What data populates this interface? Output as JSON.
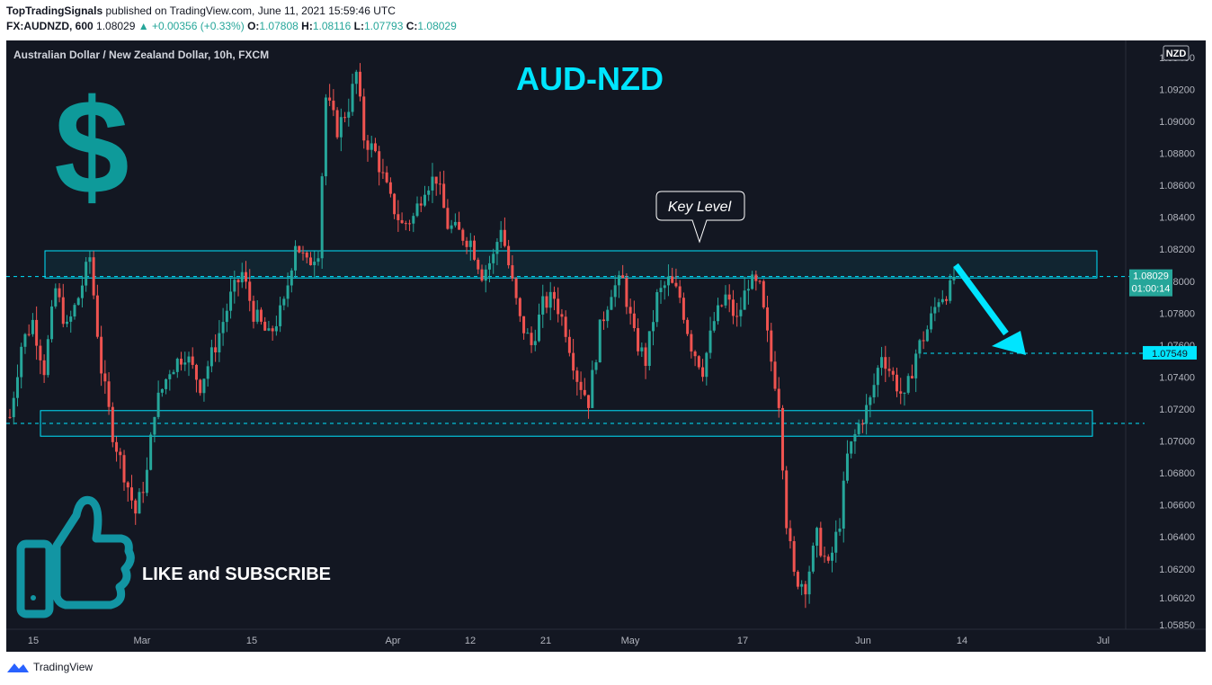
{
  "header": {
    "author": "TopTradingSignals",
    "published_text": "published on TradingView.com, June 11, 2021 15:59:46 UTC",
    "symbol": "FX:AUDNZD, 600",
    "last": "1.08029",
    "change": "▲ +0.00356 (+0.33%)",
    "o_label": "O:",
    "o": "1.07808",
    "h_label": "H:",
    "h": "1.08116",
    "l_label": "L:",
    "l": "1.07793",
    "c_label": "C:",
    "c": "1.08029"
  },
  "chart": {
    "instrument": "Australian Dollar / New Zealand Dollar, 10h, FXCM",
    "title_overlay": "AUD-NZD",
    "currency_badge": "NZD",
    "callout": "Key Level",
    "promo": "LIKE and SUBSCRIBE",
    "price_tag": "1.08029",
    "countdown": "01:00:14",
    "target_tag": "1.07549",
    "icons": {
      "dollar": "dollar-icon",
      "thumb": "thumbs-up-icon",
      "arrow": "arrow-down-right-icon"
    },
    "colors": {
      "bg": "#131722",
      "up": "#26a69a",
      "down": "#ef5350",
      "zone": "#00e5ff",
      "text": "#b2b5be",
      "accent": "#00e5ff",
      "teal_icon": "#0e9a9a"
    }
  },
  "chart_data": {
    "type": "candlestick",
    "y_ticks": [
      "1.09400",
      "1.09200",
      "1.09000",
      "1.08800",
      "1.08600",
      "1.08400",
      "1.08200",
      "1.08000",
      "1.07800",
      "1.07600",
      "1.07400",
      "1.07200",
      "1.07000",
      "1.06800",
      "1.06600",
      "1.06400",
      "1.06200",
      "1.06020",
      "1.05850"
    ],
    "x_ticks": [
      "15",
      "Mar",
      "15",
      "Apr",
      "12",
      "21",
      "May",
      "17",
      "Jun",
      "14",
      "Jul"
    ],
    "ylim": [
      1.0585,
      1.0945
    ],
    "zones": [
      {
        "name": "resistance",
        "low": 1.0802,
        "high": 1.0819
      },
      {
        "name": "support",
        "low": 1.0703,
        "high": 1.0719
      }
    ],
    "levels": [
      1.08029,
      1.0711,
      1.07549
    ],
    "price_path": [
      [
        0,
        1.0715
      ],
      [
        3,
        1.076
      ],
      [
        6,
        1.0775
      ],
      [
        9,
        1.0745
      ],
      [
        12,
        1.0795
      ],
      [
        15,
        1.077
      ],
      [
        18,
        1.079
      ],
      [
        21,
        1.0815
      ],
      [
        24,
        1.0745
      ],
      [
        27,
        1.0705
      ],
      [
        30,
        1.068
      ],
      [
        33,
        1.0655
      ],
      [
        36,
        1.068
      ],
      [
        38,
        1.072
      ],
      [
        42,
        1.0745
      ],
      [
        46,
        1.0755
      ],
      [
        50,
        1.0735
      ],
      [
        54,
        1.076
      ],
      [
        58,
        1.079
      ],
      [
        61,
        1.0805
      ],
      [
        64,
        1.078
      ],
      [
        68,
        1.0765
      ],
      [
        72,
        1.0785
      ],
      [
        75,
        1.0825
      ],
      [
        78,
        1.081
      ],
      [
        81,
        1.082
      ],
      [
        83,
        1.0915
      ],
      [
        86,
        1.0895
      ],
      [
        89,
        1.091
      ],
      [
        91,
        1.093
      ],
      [
        93,
        1.089
      ],
      [
        96,
        1.088
      ],
      [
        100,
        1.085
      ],
      [
        103,
        1.0835
      ],
      [
        106,
        1.084
      ],
      [
        109,
        1.086
      ],
      [
        112,
        1.0865
      ],
      [
        115,
        1.0835
      ],
      [
        118,
        1.083
      ],
      [
        121,
        1.0825
      ],
      [
        124,
        1.0805
      ],
      [
        127,
        1.0815
      ],
      [
        129,
        1.0835
      ],
      [
        131,
        1.081
      ],
      [
        134,
        1.0775
      ],
      [
        137,
        1.076
      ],
      [
        140,
        1.0785
      ],
      [
        143,
        1.079
      ],
      [
        146,
        1.077
      ],
      [
        149,
        1.074
      ],
      [
        152,
        1.0725
      ],
      [
        155,
        1.077
      ],
      [
        158,
        1.0795
      ],
      [
        161,
        1.08
      ],
      [
        164,
        1.0765
      ],
      [
        167,
        1.075
      ],
      [
        170,
        1.079
      ],
      [
        173,
        1.08
      ],
      [
        176,
        1.079
      ],
      [
        179,
        1.076
      ],
      [
        182,
        1.0745
      ],
      [
        185,
        1.0775
      ],
      [
        188,
        1.079
      ],
      [
        191,
        1.0775
      ],
      [
        194,
        1.08
      ],
      [
        197,
        1.0795
      ],
      [
        200,
        1.075
      ],
      [
        202,
        1.0725
      ],
      [
        204,
        1.065
      ],
      [
        206,
        1.0615
      ],
      [
        209,
        1.061
      ],
      [
        212,
        1.064
      ],
      [
        215,
        1.062
      ],
      [
        218,
        1.065
      ],
      [
        220,
        1.069
      ],
      [
        223,
        1.071
      ],
      [
        226,
        1.0725
      ],
      [
        229,
        1.0755
      ],
      [
        232,
        1.074
      ],
      [
        235,
        1.0725
      ],
      [
        238,
        1.0755
      ],
      [
        241,
        1.077
      ],
      [
        244,
        1.079
      ],
      [
        247,
        1.0795
      ],
      [
        248,
        1.0803
      ]
    ]
  }
}
